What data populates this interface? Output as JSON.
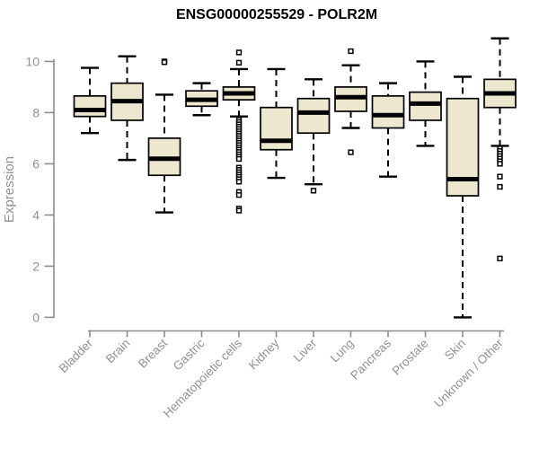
{
  "chart_data": {
    "type": "boxplot",
    "title": "ENSG00000255529 - POLR2M",
    "xlabel": "",
    "ylabel": "Expression",
    "ylim": [
      0,
      10
    ],
    "yticks": [
      0,
      2,
      4,
      6,
      8,
      10
    ],
    "grid": false,
    "legend": "none",
    "categories": [
      "Bladder",
      "Brain",
      "Breast",
      "Gastric",
      "Hematopoietic cells",
      "Kidney",
      "Liver",
      "Lung",
      "Pancreas",
      "Prostate",
      "Skin",
      "Unknown / Other"
    ],
    "series": [
      {
        "name": "Bladder",
        "whislo": 7.2,
        "q1": 7.85,
        "med": 8.1,
        "q3": 8.65,
        "whishi": 9.75,
        "outliers": []
      },
      {
        "name": "Brain",
        "whislo": 6.15,
        "q1": 7.7,
        "med": 8.45,
        "q3": 9.15,
        "whishi": 10.2,
        "outliers": []
      },
      {
        "name": "Breast",
        "whislo": 4.1,
        "q1": 5.55,
        "med": 6.2,
        "q3": 7.0,
        "whishi": 8.7,
        "outliers": [
          10.0,
          9.97
        ]
      },
      {
        "name": "Gastric",
        "whislo": 7.9,
        "q1": 8.25,
        "med": 8.5,
        "q3": 8.85,
        "whishi": 9.15,
        "outliers": []
      },
      {
        "name": "Hematopoietic cells",
        "whislo": 7.85,
        "q1": 8.5,
        "med": 8.75,
        "q3": 9.0,
        "whishi": 9.7,
        "outliers": [
          10.35,
          9.95,
          7.72,
          7.63,
          7.54,
          7.45,
          7.36,
          7.27,
          7.18,
          7.09,
          7.0,
          6.91,
          6.82,
          6.73,
          6.64,
          6.55,
          6.46,
          6.37,
          6.28,
          6.19,
          5.85,
          5.76,
          5.67,
          5.58,
          5.49,
          5.4,
          5.3,
          4.9,
          4.78,
          4.25,
          4.17
        ]
      },
      {
        "name": "Kidney",
        "whislo": 5.45,
        "q1": 6.55,
        "med": 6.9,
        "q3": 8.2,
        "whishi": 9.7,
        "outliers": []
      },
      {
        "name": "Liver",
        "whislo": 5.2,
        "q1": 7.2,
        "med": 8.0,
        "q3": 8.55,
        "whishi": 9.3,
        "outliers": [
          4.95
        ]
      },
      {
        "name": "Lung",
        "whislo": 7.4,
        "q1": 8.05,
        "med": 8.6,
        "q3": 9.0,
        "whishi": 9.85,
        "outliers": [
          10.4,
          6.45
        ]
      },
      {
        "name": "Pancreas",
        "whislo": 5.5,
        "q1": 7.4,
        "med": 7.9,
        "q3": 8.65,
        "whishi": 9.15,
        "outliers": []
      },
      {
        "name": "Prostate",
        "whislo": 6.7,
        "q1": 7.7,
        "med": 8.35,
        "q3": 8.8,
        "whishi": 10.0,
        "outliers": []
      },
      {
        "name": "Skin",
        "whislo": 0.0,
        "q1": 4.75,
        "med": 5.4,
        "q3": 8.55,
        "whishi": 9.4,
        "outliers": []
      },
      {
        "name": "Unknown / Other",
        "whislo": 6.7,
        "q1": 8.2,
        "med": 8.75,
        "q3": 9.3,
        "whishi": 10.9,
        "outliers": [
          6.6,
          6.5,
          6.4,
          6.3,
          6.2,
          6.1,
          6.0,
          5.5,
          5.1,
          2.3
        ]
      }
    ],
    "colors": {
      "box_fill": "#EDE7CF",
      "box_border": "#000000",
      "median": "#000000",
      "whisker": "#000000",
      "outlier": "#000000",
      "axis": "#8C8C8C",
      "tick_label": "#919191",
      "axis_label": "#919191",
      "title_text": "#000000",
      "background": "#FFFFFF"
    }
  }
}
